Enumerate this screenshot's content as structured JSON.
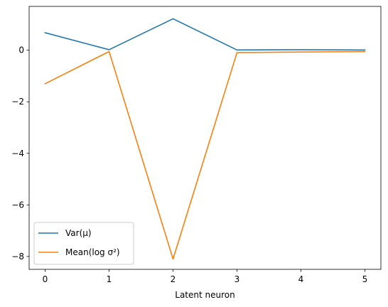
{
  "chart_data": {
    "type": "line",
    "title": "",
    "xlabel": "Latent neuron",
    "ylabel": "",
    "x": [
      0,
      1,
      2,
      3,
      4,
      5
    ],
    "xlim": [
      -0.25,
      5.25
    ],
    "ylim": [
      -8.5,
      1.7
    ],
    "xticks": [
      0,
      1,
      2,
      3,
      4,
      5
    ],
    "xtick_labels": [
      "0",
      "1",
      "2",
      "3",
      "4",
      "5"
    ],
    "yticks": [
      0,
      -2,
      -4,
      -6,
      -8
    ],
    "ytick_labels": [
      "0",
      "−2",
      "−4",
      "−6",
      "−8"
    ],
    "grid": false,
    "legend_position": "lower-left",
    "series": [
      {
        "name": "Var(μ)",
        "color": "#1f77b4",
        "values": [
          0.68,
          0.02,
          1.22,
          0.01,
          0.02,
          0.01
        ]
      },
      {
        "name": "Mean(log σ²)",
        "color": "#ff7f0e",
        "values": [
          -1.3,
          -0.05,
          -8.1,
          -0.09,
          -0.07,
          -0.05
        ]
      }
    ]
  }
}
